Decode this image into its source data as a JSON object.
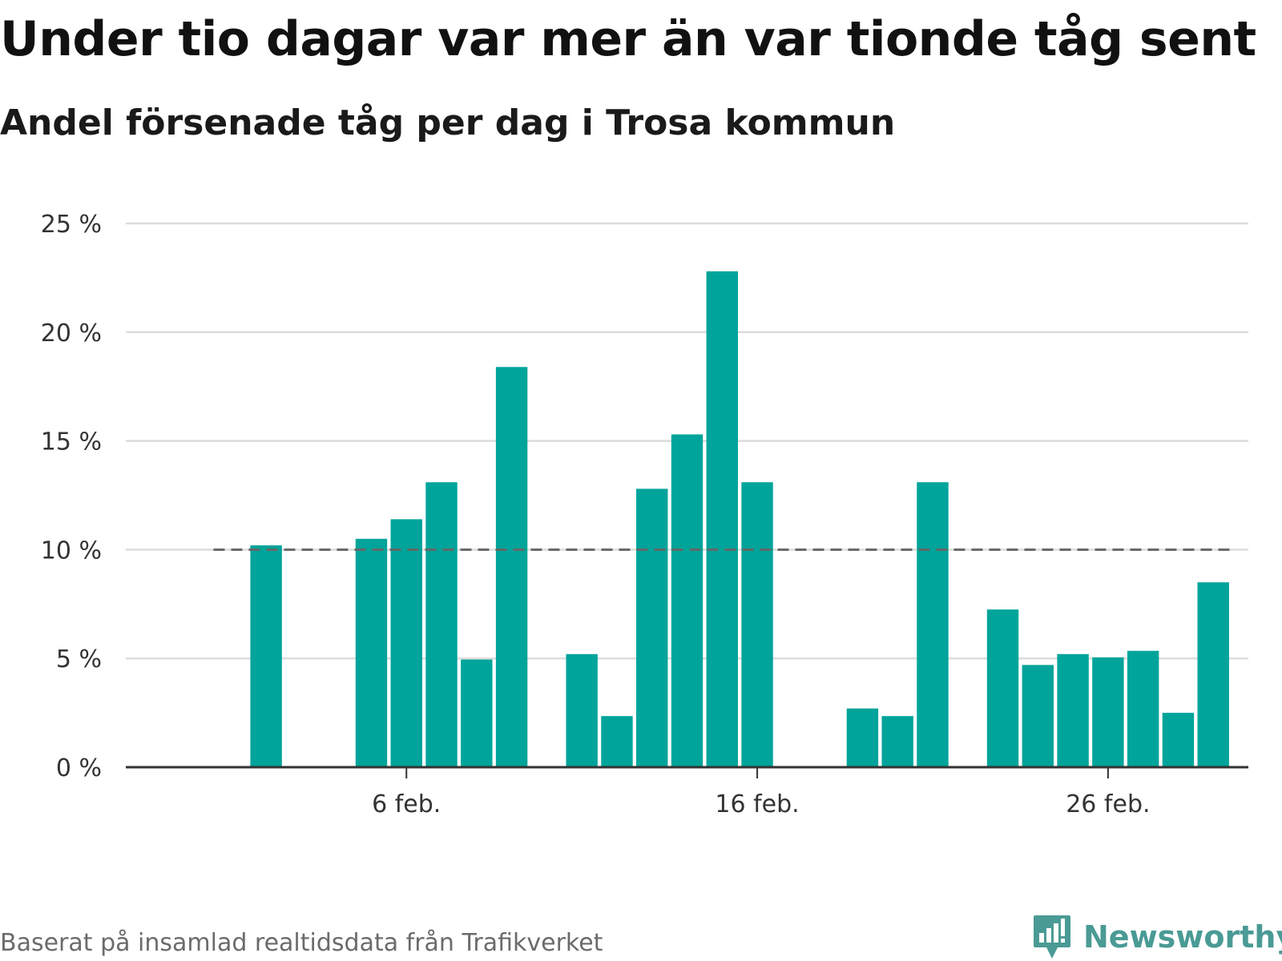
{
  "header": {
    "title": "Under tio dagar var mer än var tionde tåg sent",
    "subtitle": "Andel försenade tåg per dag i Trosa kommun"
  },
  "footer": {
    "source": "Baserat på insamlad realtidsdata från Trafikverket",
    "brand": "Newsworthy",
    "brand_icon": "newsworthy-logo-icon"
  },
  "colors": {
    "bar": "#00a49a",
    "grid": "#dcdcdc",
    "axis": "#333333",
    "reference_line": "#666666",
    "brand": "#4a9a95"
  },
  "chart_data": {
    "type": "bar",
    "title": "Under tio dagar var mer än var tionde tåg sent",
    "subtitle": "Andel försenade tåg per dag i Trosa kommun",
    "xlabel": "",
    "ylabel": "",
    "x": [
      1,
      2,
      3,
      4,
      5,
      6,
      7,
      8,
      9,
      10,
      11,
      12,
      13,
      14,
      15,
      16,
      17,
      18,
      19,
      20,
      21,
      22,
      23,
      24,
      25,
      26,
      27,
      28,
      29
    ],
    "values": [
      null,
      10.2,
      null,
      null,
      10.5,
      11.4,
      13.1,
      4.95,
      18.4,
      null,
      5.2,
      2.35,
      12.8,
      15.3,
      22.8,
      13.1,
      null,
      null,
      2.7,
      2.35,
      13.1,
      null,
      7.25,
      4.7,
      5.2,
      5.05,
      5.35,
      2.5,
      8.5
    ],
    "x_unit": "day of February",
    "x_domain": [
      -2,
      30
    ],
    "x_ticks": [
      6,
      16,
      26
    ],
    "x_tick_labels": [
      "6 feb.",
      "16 feb.",
      "26 feb."
    ],
    "ylim": [
      0,
      25
    ],
    "y_ticks": [
      0,
      5,
      10,
      15,
      20,
      25
    ],
    "y_tick_labels": [
      "0 %",
      "5 %",
      "10 %",
      "15 %",
      "20 %",
      "25 %"
    ],
    "reference_line": {
      "value": 10,
      "from": 0.5,
      "to": 29.5,
      "style": "dashed"
    },
    "grid": true,
    "legend": "none"
  }
}
